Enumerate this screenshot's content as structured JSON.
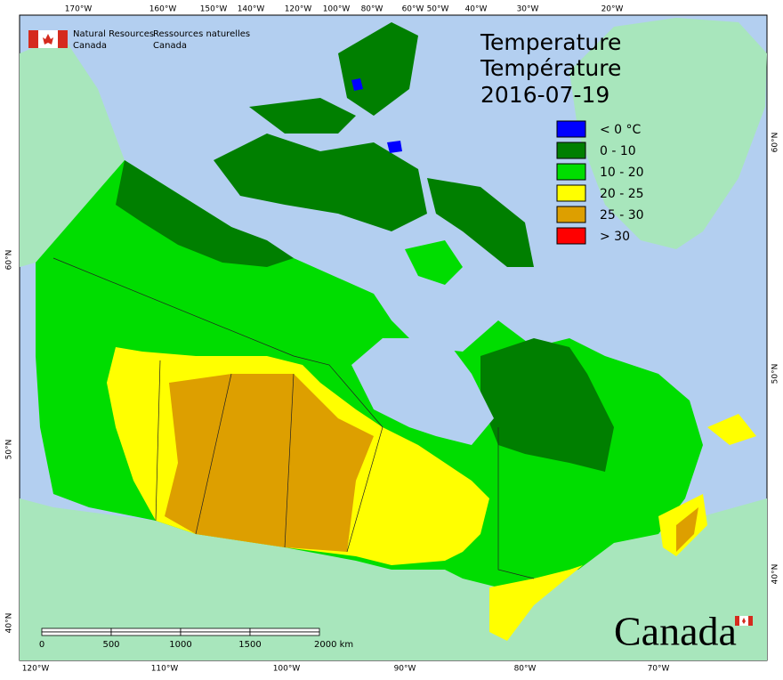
{
  "agency": {
    "en": [
      "Natural Resources",
      "Canada"
    ],
    "fr": [
      "Ressources naturelles",
      "Canada"
    ]
  },
  "title": {
    "lines": [
      "Temperature",
      "Température"
    ],
    "date": "2016-07-19"
  },
  "legend": [
    {
      "label": "< 0 °C",
      "color": "#0000ff"
    },
    {
      "label": "0 - 10",
      "color": "#007f00"
    },
    {
      "label": "10 - 20",
      "color": "#00dd00"
    },
    {
      "label": "20 - 25",
      "color": "#ffff00"
    },
    {
      "label": "25 - 30",
      "color": "#dd9f00"
    },
    {
      "label": "> 30",
      "color": "#ff0000"
    }
  ],
  "graticule": {
    "top": [
      "170°W",
      "160°W",
      "150°W",
      "140°W",
      "120°W",
      "100°W",
      "80°W",
      "60°W",
      "50°W",
      "40°W",
      "30°W",
      "20°W"
    ],
    "bottom": [
      "120°W",
      "110°W",
      "100°W",
      "90°W",
      "80°W",
      "70°W"
    ],
    "left": [
      "60°N",
      "50°N",
      "40°N"
    ],
    "right": [
      "60°N",
      "50°N",
      "40°N"
    ]
  },
  "scale_bar": [
    "0",
    "500",
    "1000",
    "1500",
    "2000 km"
  ],
  "wordmark": "Canada"
}
